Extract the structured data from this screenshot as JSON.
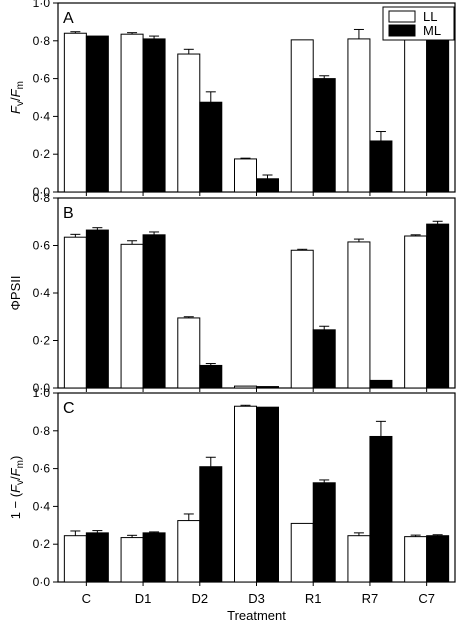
{
  "chart_data": {
    "type": "bar",
    "xlabel": "Treatment",
    "categories": [
      "C",
      "D1",
      "D2",
      "D3",
      "R1",
      "R7",
      "C7"
    ],
    "legend": {
      "placement": "top-right",
      "entries": [
        {
          "name": "LL",
          "color": "#ffffff"
        },
        {
          "name": "ML",
          "color": "#000000"
        }
      ]
    },
    "panels": [
      {
        "letter": "A",
        "ylabel_parts": [
          {
            "t": "F",
            "style": "italic"
          },
          {
            "t": "v",
            "style": "sub"
          },
          {
            "t": "/",
            "style": "normal"
          },
          {
            "t": "F",
            "style": "italic"
          },
          {
            "t": "m",
            "style": "sub"
          }
        ],
        "ylim": [
          0,
          1.0
        ],
        "ticks": [
          "0·0",
          "0·2",
          "0·4",
          "0·6",
          "0·8",
          "1·0"
        ],
        "tick_values": [
          0,
          0.2,
          0.4,
          0.6,
          0.8,
          1.0
        ],
        "series": [
          {
            "name": "LL",
            "values": [
              0.84,
              0.835,
              0.73,
              0.175,
              0.805,
              0.81,
              0.845
            ],
            "errors": [
              0.008,
              0.008,
              0.025,
              0.004,
              0,
              0.05,
              0.008
            ]
          },
          {
            "name": "ML",
            "values": [
              0.825,
              0.81,
              0.475,
              0.07,
              0.6,
              0.27,
              0.83
            ],
            "errors": [
              0,
              0.015,
              0.055,
              0.02,
              0.015,
              0.05,
              0.005
            ]
          }
        ]
      },
      {
        "letter": "B",
        "ylabel_parts": [
          {
            "t": "ΦPSII",
            "style": "normal"
          }
        ],
        "ylim": [
          0,
          0.8
        ],
        "ticks": [
          "0·0",
          "0·2",
          "0·4",
          "0·6",
          "0·8"
        ],
        "tick_values": [
          0,
          0.2,
          0.4,
          0.6,
          0.8
        ],
        "series": [
          {
            "name": "LL",
            "values": [
              0.635,
              0.605,
              0.295,
              0.008,
              0.58,
              0.615,
              0.64
            ],
            "errors": [
              0.012,
              0.015,
              0.005,
              0,
              0.004,
              0.012,
              0.005
            ]
          },
          {
            "name": "ML",
            "values": [
              0.665,
              0.645,
              0.095,
              0.006,
              0.245,
              0.032,
              0.69
            ],
            "errors": [
              0.01,
              0.012,
              0.008,
              0,
              0.015,
              0,
              0.012
            ]
          }
        ]
      },
      {
        "letter": "C",
        "ylabel_parts": [
          {
            "t": "1 − (",
            "style": "normal"
          },
          {
            "t": "F",
            "style": "italic"
          },
          {
            "t": "v",
            "style": "sub"
          },
          {
            "t": "/",
            "style": "normal"
          },
          {
            "t": "F",
            "style": "italic"
          },
          {
            "t": "m",
            "style": "sub"
          },
          {
            "t": ")",
            "style": "normal"
          }
        ],
        "ylim": [
          0,
          1.0
        ],
        "ticks": [
          "0·0",
          "0·2",
          "0·4",
          "0·6",
          "0·8",
          "1·0"
        ],
        "tick_values": [
          0,
          0.2,
          0.4,
          0.6,
          0.8,
          1.0
        ],
        "series": [
          {
            "name": "LL",
            "values": [
              0.245,
              0.235,
              0.325,
              0.93,
              0.31,
              0.245,
              0.24
            ],
            "errors": [
              0.025,
              0.012,
              0.035,
              0.005,
              0,
              0.015,
              0.008
            ]
          },
          {
            "name": "ML",
            "values": [
              0.26,
              0.26,
              0.61,
              0.925,
              0.525,
              0.77,
              0.245
            ],
            "errors": [
              0.012,
              0.005,
              0.05,
              0,
              0.015,
              0.08,
              0.005
            ]
          }
        ]
      }
    ]
  }
}
